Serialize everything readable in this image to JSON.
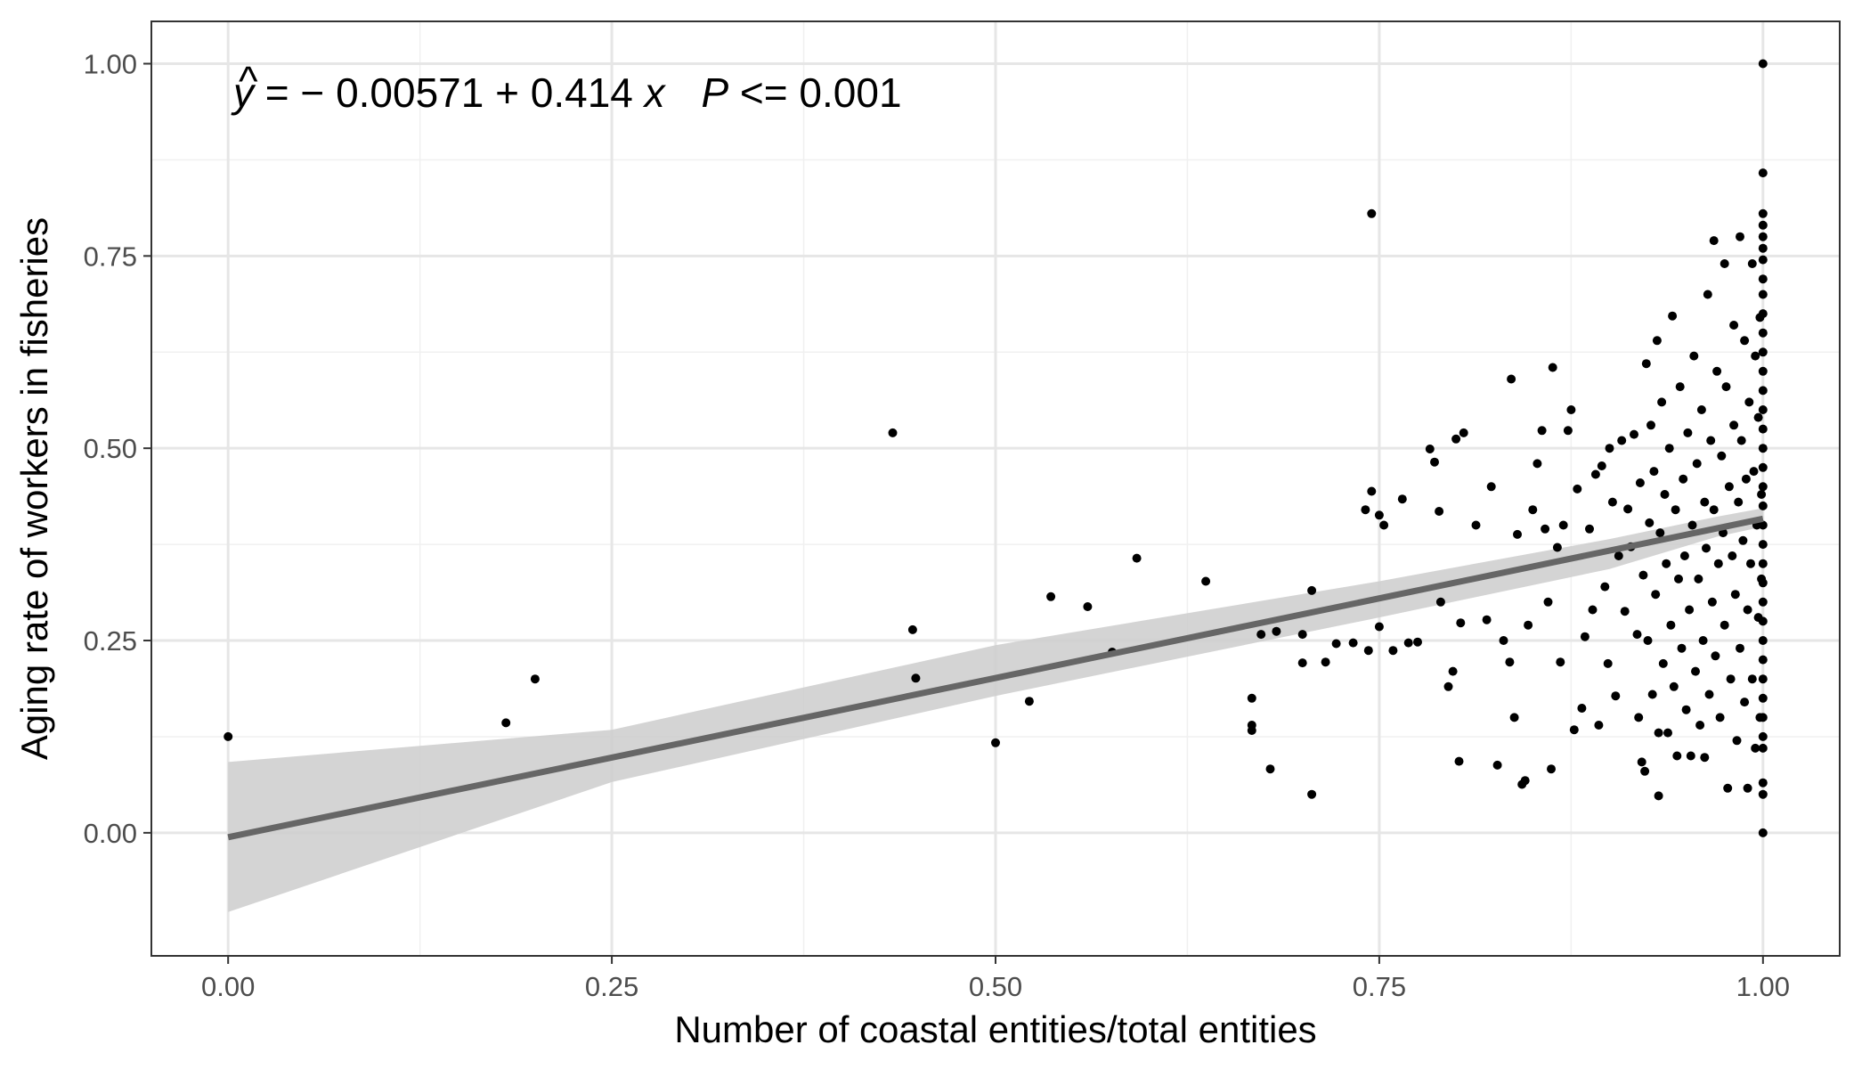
{
  "chart_data": {
    "type": "scatter",
    "title": "",
    "xlabel": "Number of coastal entities/total entities",
    "ylabel": "Aging rate of workers in fisheries",
    "xlim": [
      -0.05,
      1.05
    ],
    "ylim": [
      -0.16,
      1.055
    ],
    "x_ticks": [
      0,
      0.25,
      0.5,
      0.75,
      1
    ],
    "y_ticks": [
      0,
      0.25,
      0.5,
      0.75,
      1
    ],
    "x_tick_labels": [
      "0.00",
      "0.25",
      "0.50",
      "0.75",
      "1.00"
    ],
    "y_tick_labels": [
      "0.00",
      "0.25",
      "0.50",
      "0.75",
      "1.00"
    ],
    "grid": true,
    "legend": "none",
    "annotation": {
      "yhat": "y",
      "equation": " = − 0.00571 + 0.414 ",
      "x_var": "x",
      "p_label": "P",
      "p_value": " <= 0.001"
    },
    "fit_line": {
      "intercept": -0.00571,
      "slope": 0.414,
      "color": "#666666"
    },
    "confidence_band": {
      "color": "#cccccc",
      "x": [
        0,
        0.25,
        0.5,
        0.75,
        0.9,
        0.97,
        1
      ],
      "lower": [
        -0.103,
        0.066,
        0.178,
        0.28,
        0.343,
        0.385,
        0.398
      ],
      "upper": [
        0.092,
        0.134,
        0.244,
        0.327,
        0.382,
        0.411,
        0.422
      ]
    },
    "points": [
      [
        0.0,
        0.125
      ],
      [
        0.181,
        0.143
      ],
      [
        0.2,
        0.2
      ],
      [
        0.433,
        0.52
      ],
      [
        0.446,
        0.264
      ],
      [
        0.448,
        0.201
      ],
      [
        0.5,
        0.117
      ],
      [
        0.522,
        0.171
      ],
      [
        0.536,
        0.307
      ],
      [
        0.56,
        0.294
      ],
      [
        0.576,
        0.235
      ],
      [
        0.592,
        0.357
      ],
      [
        0.637,
        0.327
      ],
      [
        0.667,
        0.175
      ],
      [
        0.667,
        0.14
      ],
      [
        0.667,
        0.133
      ],
      [
        0.673,
        0.258
      ],
      [
        0.679,
        0.083
      ],
      [
        0.683,
        0.262
      ],
      [
        0.7,
        0.258
      ],
      [
        0.7,
        0.221
      ],
      [
        0.706,
        0.315
      ],
      [
        0.706,
        0.05
      ],
      [
        0.715,
        0.222
      ],
      [
        0.722,
        0.246
      ],
      [
        0.733,
        0.247
      ],
      [
        0.741,
        0.42
      ],
      [
        0.743,
        0.237
      ],
      [
        0.745,
        0.805
      ],
      [
        0.745,
        0.444
      ],
      [
        0.75,
        0.268
      ],
      [
        0.75,
        0.413
      ],
      [
        0.753,
        0.4
      ],
      [
        0.759,
        0.237
      ],
      [
        0.765,
        0.434
      ],
      [
        0.769,
        0.247
      ],
      [
        0.775,
        0.248
      ],
      [
        0.783,
        0.499
      ],
      [
        0.786,
        0.482
      ],
      [
        0.789,
        0.418
      ],
      [
        0.79,
        0.3
      ],
      [
        0.795,
        0.19
      ],
      [
        0.798,
        0.21
      ],
      [
        0.8,
        0.512
      ],
      [
        0.802,
        0.093
      ],
      [
        0.803,
        0.273
      ],
      [
        0.805,
        0.52
      ],
      [
        0.813,
        0.4
      ],
      [
        0.82,
        0.277
      ],
      [
        0.823,
        0.45
      ],
      [
        0.827,
        0.088
      ],
      [
        0.831,
        0.25
      ],
      [
        0.835,
        0.222
      ],
      [
        0.836,
        0.59
      ],
      [
        0.838,
        0.15
      ],
      [
        0.84,
        0.388
      ],
      [
        0.843,
        0.063
      ],
      [
        0.845,
        0.068
      ],
      [
        0.847,
        0.27
      ],
      [
        0.85,
        0.42
      ],
      [
        0.853,
        0.48
      ],
      [
        0.856,
        0.523
      ],
      [
        0.858,
        0.395
      ],
      [
        0.86,
        0.3
      ],
      [
        0.862,
        0.083
      ],
      [
        0.863,
        0.605
      ],
      [
        0.866,
        0.371
      ],
      [
        0.868,
        0.222
      ],
      [
        0.87,
        0.4
      ],
      [
        0.873,
        0.523
      ],
      [
        0.875,
        0.55
      ],
      [
        0.877,
        0.134
      ],
      [
        0.879,
        0.447
      ],
      [
        0.882,
        0.162
      ],
      [
        0.884,
        0.255
      ],
      [
        0.887,
        0.395
      ],
      [
        0.889,
        0.29
      ],
      [
        0.891,
        0.466
      ],
      [
        0.893,
        0.14
      ],
      [
        0.895,
        0.477
      ],
      [
        0.897,
        0.32
      ],
      [
        0.899,
        0.22
      ],
      [
        0.9,
        0.5
      ],
      [
        0.902,
        0.43
      ],
      [
        0.904,
        0.178
      ],
      [
        0.906,
        0.36
      ],
      [
        0.908,
        0.51
      ],
      [
        0.91,
        0.288
      ],
      [
        0.912,
        0.421
      ],
      [
        0.914,
        0.372
      ],
      [
        0.916,
        0.518
      ],
      [
        0.918,
        0.258
      ],
      [
        0.919,
        0.15
      ],
      [
        0.92,
        0.455
      ],
      [
        0.921,
        0.092
      ],
      [
        0.922,
        0.335
      ],
      [
        0.923,
        0.08
      ],
      [
        0.924,
        0.61
      ],
      [
        0.925,
        0.25
      ],
      [
        0.926,
        0.403
      ],
      [
        0.927,
        0.53
      ],
      [
        0.928,
        0.18
      ],
      [
        0.929,
        0.47
      ],
      [
        0.93,
        0.31
      ],
      [
        0.931,
        0.64
      ],
      [
        0.932,
        0.13
      ],
      [
        0.932,
        0.048
      ],
      [
        0.933,
        0.39
      ],
      [
        0.934,
        0.56
      ],
      [
        0.935,
        0.22
      ],
      [
        0.936,
        0.44
      ],
      [
        0.937,
        0.35
      ],
      [
        0.938,
        0.13
      ],
      [
        0.939,
        0.5
      ],
      [
        0.94,
        0.27
      ],
      [
        0.941,
        0.672
      ],
      [
        0.942,
        0.19
      ],
      [
        0.943,
        0.42
      ],
      [
        0.944,
        0.1
      ],
      [
        0.945,
        0.33
      ],
      [
        0.946,
        0.58
      ],
      [
        0.947,
        0.24
      ],
      [
        0.948,
        0.46
      ],
      [
        0.949,
        0.36
      ],
      [
        0.95,
        0.16
      ],
      [
        0.951,
        0.52
      ],
      [
        0.952,
        0.29
      ],
      [
        0.953,
        0.1
      ],
      [
        0.954,
        0.4
      ],
      [
        0.955,
        0.62
      ],
      [
        0.956,
        0.21
      ],
      [
        0.957,
        0.48
      ],
      [
        0.958,
        0.33
      ],
      [
        0.959,
        0.14
      ],
      [
        0.96,
        0.55
      ],
      [
        0.961,
        0.25
      ],
      [
        0.962,
        0.43
      ],
      [
        0.962,
        0.098
      ],
      [
        0.963,
        0.37
      ],
      [
        0.964,
        0.7
      ],
      [
        0.965,
        0.18
      ],
      [
        0.966,
        0.51
      ],
      [
        0.967,
        0.3
      ],
      [
        0.968,
        0.77
      ],
      [
        0.968,
        0.42
      ],
      [
        0.969,
        0.23
      ],
      [
        0.97,
        0.6
      ],
      [
        0.971,
        0.35
      ],
      [
        0.972,
        0.15
      ],
      [
        0.973,
        0.49
      ],
      [
        0.974,
        0.39
      ],
      [
        0.975,
        0.74
      ],
      [
        0.975,
        0.27
      ],
      [
        0.976,
        0.58
      ],
      [
        0.977,
        0.058
      ],
      [
        0.978,
        0.45
      ],
      [
        0.979,
        0.2
      ],
      [
        0.98,
        0.36
      ],
      [
        0.981,
        0.66
      ],
      [
        0.981,
        0.53
      ],
      [
        0.982,
        0.31
      ],
      [
        0.983,
        0.12
      ],
      [
        0.984,
        0.43
      ],
      [
        0.985,
        0.775
      ],
      [
        0.985,
        0.24
      ],
      [
        0.986,
        0.51
      ],
      [
        0.987,
        0.38
      ],
      [
        0.988,
        0.64
      ],
      [
        0.988,
        0.17
      ],
      [
        0.989,
        0.46
      ],
      [
        0.99,
        0.29
      ],
      [
        0.99,
        0.058
      ],
      [
        0.991,
        0.56
      ],
      [
        0.992,
        0.35
      ],
      [
        0.993,
        0.74
      ],
      [
        0.993,
        0.2
      ],
      [
        0.994,
        0.47
      ],
      [
        0.995,
        0.62
      ],
      [
        0.995,
        0.11
      ],
      [
        0.996,
        0.4
      ],
      [
        0.997,
        0.54
      ],
      [
        0.997,
        0.28
      ],
      [
        0.998,
        0.67
      ],
      [
        0.998,
        0.15
      ],
      [
        0.999,
        0.44
      ],
      [
        0.999,
        0.33
      ],
      [
        1.0,
        1.0
      ],
      [
        1.0,
        0.858
      ],
      [
        1.0,
        0.805
      ],
      [
        1.0,
        0.79
      ],
      [
        1.0,
        0.775
      ],
      [
        1.0,
        0.76
      ],
      [
        1.0,
        0.745
      ],
      [
        1.0,
        0.72
      ],
      [
        1.0,
        0.7
      ],
      [
        1.0,
        0.675
      ],
      [
        1.0,
        0.65
      ],
      [
        1.0,
        0.625
      ],
      [
        1.0,
        0.6
      ],
      [
        1.0,
        0.575
      ],
      [
        1.0,
        0.55
      ],
      [
        1.0,
        0.525
      ],
      [
        1.0,
        0.5
      ],
      [
        1.0,
        0.475
      ],
      [
        1.0,
        0.45
      ],
      [
        1.0,
        0.425
      ],
      [
        1.0,
        0.4
      ],
      [
        1.0,
        0.375
      ],
      [
        1.0,
        0.35
      ],
      [
        1.0,
        0.325
      ],
      [
        1.0,
        0.3
      ],
      [
        1.0,
        0.275
      ],
      [
        1.0,
        0.25
      ],
      [
        1.0,
        0.225
      ],
      [
        1.0,
        0.2
      ],
      [
        1.0,
        0.175
      ],
      [
        1.0,
        0.15
      ],
      [
        1.0,
        0.125
      ],
      [
        1.0,
        0.11
      ],
      [
        1.0,
        0.065
      ],
      [
        1.0,
        0.05
      ],
      [
        1.0,
        0.0
      ]
    ]
  }
}
